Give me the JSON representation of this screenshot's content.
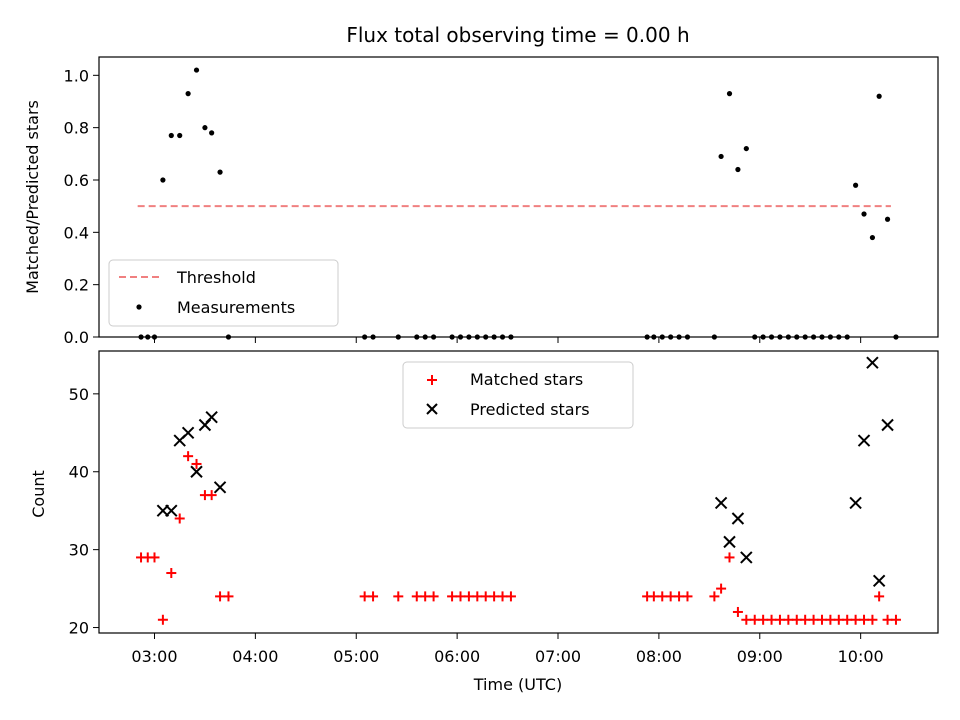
{
  "chart_data": [
    {
      "type": "scatter",
      "title": "Flux total observing time = 0.00 h",
      "xlabel": "",
      "ylabel": "Matched/Predicted stars",
      "ylim": [
        0.0,
        1.07
      ],
      "xlim": [
        "02:27",
        "10:46"
      ],
      "yticks": [
        "0.0",
        "0.2",
        "0.4",
        "0.6",
        "0.8",
        "1.0"
      ],
      "ytick_values": [
        0.0,
        0.2,
        0.4,
        0.6,
        0.8,
        1.0
      ],
      "legend": {
        "placement": "lower-left",
        "entries": [
          "Threshold",
          "Measurements"
        ]
      },
      "threshold": {
        "name": "Threshold",
        "y": 0.5,
        "x_start": "02:50",
        "x_end": "10:18",
        "color": "#f08080",
        "style": "dashed"
      },
      "series": [
        {
          "name": "Measurements",
          "marker": "dot",
          "color": "#000000",
          "x": [
            "02:52",
            "02:56",
            "03:00",
            "03:05",
            "03:10",
            "03:15",
            "03:20",
            "03:25",
            "03:30",
            "03:34",
            "03:39",
            "03:44",
            "05:05",
            "05:10",
            "05:25",
            "05:36",
            "05:41",
            "05:46",
            "05:57",
            "06:02",
            "06:07",
            "06:12",
            "06:17",
            "06:22",
            "06:27",
            "06:32",
            "07:53",
            "07:57",
            "08:02",
            "08:07",
            "08:12",
            "08:17",
            "08:33",
            "08:37",
            "08:42",
            "08:47",
            "08:52",
            "08:57",
            "09:02",
            "09:07",
            "09:12",
            "09:17",
            "09:22",
            "09:27",
            "09:32",
            "09:37",
            "09:42",
            "09:47",
            "09:52",
            "09:57",
            "10:02",
            "10:07",
            "10:11",
            "10:16",
            "10:21"
          ],
          "y": [
            0.0,
            0.0,
            0.0,
            0.6,
            0.77,
            0.77,
            0.93,
            1.02,
            0.8,
            0.78,
            0.63,
            0.0,
            0.0,
            0.0,
            0.0,
            0.0,
            0.0,
            0.0,
            0.0,
            0.0,
            0.0,
            0.0,
            0.0,
            0.0,
            0.0,
            0.0,
            0.0,
            0.0,
            0.0,
            0.0,
            0.0,
            0.0,
            0.0,
            0.69,
            0.93,
            0.64,
            0.72,
            0.0,
            0.0,
            0.0,
            0.0,
            0.0,
            0.0,
            0.0,
            0.0,
            0.0,
            0.0,
            0.0,
            0.0,
            0.58,
            0.47,
            0.38,
            0.92,
            0.45,
            0.0
          ]
        }
      ]
    },
    {
      "type": "scatter",
      "title": "",
      "xlabel": "Time (UTC)",
      "ylabel": "Count",
      "ylim": [
        19.3,
        55.5
      ],
      "xlim": [
        "02:27",
        "10:46"
      ],
      "yticks": [
        "20",
        "30",
        "40",
        "50"
      ],
      "ytick_values": [
        20,
        30,
        40,
        50
      ],
      "xticks": [
        "03:00",
        "04:00",
        "05:00",
        "06:00",
        "07:00",
        "08:00",
        "09:00",
        "10:00"
      ],
      "legend": {
        "placement": "upper-center",
        "entries": [
          "Matched stars",
          "Predicted stars"
        ]
      },
      "series": [
        {
          "name": "Matched stars",
          "marker": "plus",
          "color": "#ff0000",
          "x": [
            "02:52",
            "02:56",
            "03:00",
            "03:05",
            "03:10",
            "03:15",
            "03:20",
            "03:25",
            "03:30",
            "03:34",
            "03:39",
            "03:44",
            "05:05",
            "05:10",
            "05:25",
            "05:36",
            "05:41",
            "05:46",
            "05:57",
            "06:02",
            "06:07",
            "06:12",
            "06:17",
            "06:22",
            "06:27",
            "06:32",
            "07:53",
            "07:57",
            "08:02",
            "08:07",
            "08:12",
            "08:17",
            "08:33",
            "08:37",
            "08:42",
            "08:47",
            "08:52",
            "08:57",
            "09:02",
            "09:07",
            "09:12",
            "09:17",
            "09:22",
            "09:27",
            "09:32",
            "09:37",
            "09:42",
            "09:47",
            "09:52",
            "09:57",
            "10:02",
            "10:07",
            "10:11",
            "10:16",
            "10:21"
          ],
          "y": [
            29,
            29,
            29,
            21,
            27,
            34,
            42,
            41,
            37,
            37,
            24,
            24,
            24,
            24,
            24,
            24,
            24,
            24,
            24,
            24,
            24,
            24,
            24,
            24,
            24,
            24,
            24,
            24,
            24,
            24,
            24,
            24,
            24,
            25,
            29,
            22,
            21,
            21,
            21,
            21,
            21,
            21,
            21,
            21,
            21,
            21,
            21,
            21,
            21,
            21,
            21,
            21,
            24,
            21,
            21
          ]
        },
        {
          "name": "Predicted stars",
          "marker": "x",
          "color": "#000000",
          "x": [
            "03:05",
            "03:10",
            "03:15",
            "03:20",
            "03:25",
            "03:30",
            "03:34",
            "03:39",
            "08:37",
            "08:42",
            "08:47",
            "08:52",
            "09:57",
            "10:02",
            "10:07",
            "10:11",
            "10:16"
          ],
          "y": [
            35,
            35,
            44,
            45,
            40,
            46,
            47,
            38,
            36,
            31,
            34,
            29,
            36,
            44,
            54,
            26,
            46
          ]
        }
      ]
    }
  ]
}
